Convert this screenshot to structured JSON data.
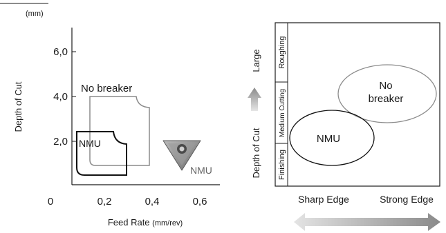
{
  "left_chart": {
    "unit_label": "(mm)",
    "y_title": "Depth of Cut",
    "x_title": "Feed Rate",
    "x_unit": "(mm/rev)",
    "y_ticks": [
      "6,0",
      "4,0",
      "2,0"
    ],
    "x_ticks": [
      "0",
      "0,2",
      "0,4",
      "0,6"
    ],
    "region_no_breaker": "No breaker",
    "region_nmu": "NMU",
    "insert_label": "NMU"
  },
  "right_chart": {
    "y_title": "Depth of Cut",
    "large_label": "Large",
    "rows": [
      "Roughing",
      "Medium Cutting",
      "Finishing"
    ],
    "ellipse_no_breaker_line1": "No",
    "ellipse_no_breaker_line2": "breaker",
    "ellipse_nmu": "NMU",
    "x_left": "Sharp Edge",
    "x_right": "Strong Edge"
  },
  "colors": {
    "axis": "#1a1a1a",
    "no_breaker_region": "#8c8c8c",
    "nmu_region": "#111111",
    "arrow_gradient_light": "#e6e6e6",
    "arrow_gradient_dark": "#8a8a8a"
  },
  "icons": [
    "insert-triangle-icon",
    "up-arrow-icon",
    "double-arrow-icon"
  ]
}
